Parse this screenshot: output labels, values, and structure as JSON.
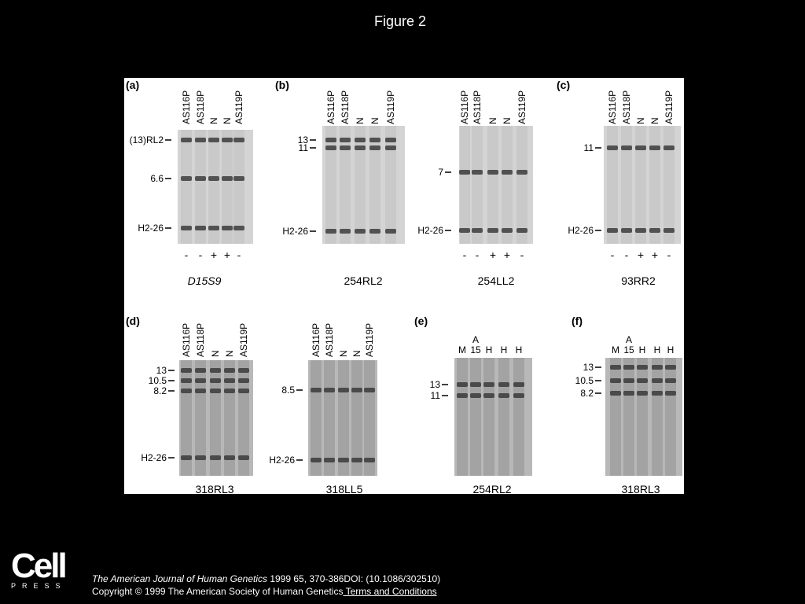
{
  "title": "Figure 2",
  "panels": [
    {
      "label": "(a)",
      "lanes": [
        "AS116P",
        "AS118P",
        "N",
        "N",
        "AS119P"
      ],
      "markers": [
        "(13)RL2",
        "6.6",
        "H2-26"
      ],
      "signs": [
        "-",
        "-",
        "+",
        "+",
        "-"
      ],
      "probe": "D15S9"
    },
    {
      "label": "(b)",
      "lanes": [
        "AS116P",
        "AS118P",
        "N",
        "N",
        "AS119P"
      ],
      "markers": [
        "13",
        "11",
        "H2-26"
      ],
      "probe": "254RL2"
    },
    {
      "lanes": [
        "AS116P",
        "AS118P",
        "N",
        "N",
        "AS119P"
      ],
      "markers": [
        "7",
        "H2-26"
      ],
      "signs": [
        "-",
        "-",
        "+",
        "+",
        "-"
      ],
      "probe": "254LL2"
    },
    {
      "label": "(c)",
      "lanes": [
        "AS116P",
        "AS118P",
        "N",
        "N",
        "AS119P"
      ],
      "markers": [
        "11",
        "H2-26"
      ],
      "signs": [
        "-",
        "-",
        "+",
        "+",
        "-"
      ],
      "probe": "93RR2"
    },
    {
      "label": "(d)",
      "lanes": [
        "AS116P",
        "AS118P",
        "N",
        "N",
        "AS119P"
      ],
      "markers": [
        "13",
        "10.5",
        "8.2",
        "H2-26"
      ],
      "probe": "318RL3"
    },
    {
      "lanes": [
        "AS116P",
        "AS118P",
        "N",
        "N",
        "AS119P"
      ],
      "markers": [
        "8.5",
        "H2-26"
      ],
      "probe": "318LL5"
    },
    {
      "label": "(e)",
      "lanes": [
        "M",
        "15",
        "H",
        "H",
        "H"
      ],
      "lane_note": "A",
      "markers": [
        "13",
        "11"
      ],
      "probe": "254RL2"
    },
    {
      "label": "(f)",
      "lanes": [
        "M",
        "15",
        "H",
        "H",
        "H"
      ],
      "lane_note": "A",
      "markers": [
        "13",
        "10.5",
        "8.2"
      ],
      "probe": "318RL3"
    }
  ],
  "footer": {
    "logo": "Cell",
    "logo_sub": "PRESS",
    "journal": "The American Journal of Human Genetics",
    "citation": " 1999 65, 370-386DOI: (10.1086/302510)",
    "copyright": "Copyright © 1999 The American Society of Human Genetics",
    "link": " Terms and Conditions"
  }
}
